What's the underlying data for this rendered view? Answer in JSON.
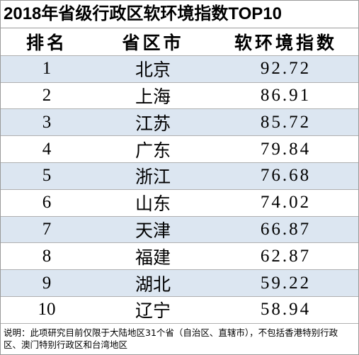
{
  "title": "2018年省级行政区软环境指数TOP10",
  "table": {
    "columns": [
      "排名",
      "省区市",
      "软环境指数"
    ],
    "rows": [
      [
        "1",
        "北京",
        "92.72"
      ],
      [
        "2",
        "上海",
        "86.91"
      ],
      [
        "3",
        "江苏",
        "85.72"
      ],
      [
        "4",
        "广东",
        "79.84"
      ],
      [
        "5",
        "浙江",
        "76.68"
      ],
      [
        "6",
        "山东",
        "74.02"
      ],
      [
        "7",
        "天津",
        "66.87"
      ],
      [
        "8",
        "福建",
        "62.87"
      ],
      [
        "9",
        "湖北",
        "59.22"
      ],
      [
        "10",
        "辽宁",
        "58.94"
      ]
    ]
  },
  "note": "说明：此项研究目前仅限于大陆地区31个省（自治区、直辖市），不包括香港特别行政区、澳门特别行政区和台湾地区"
}
